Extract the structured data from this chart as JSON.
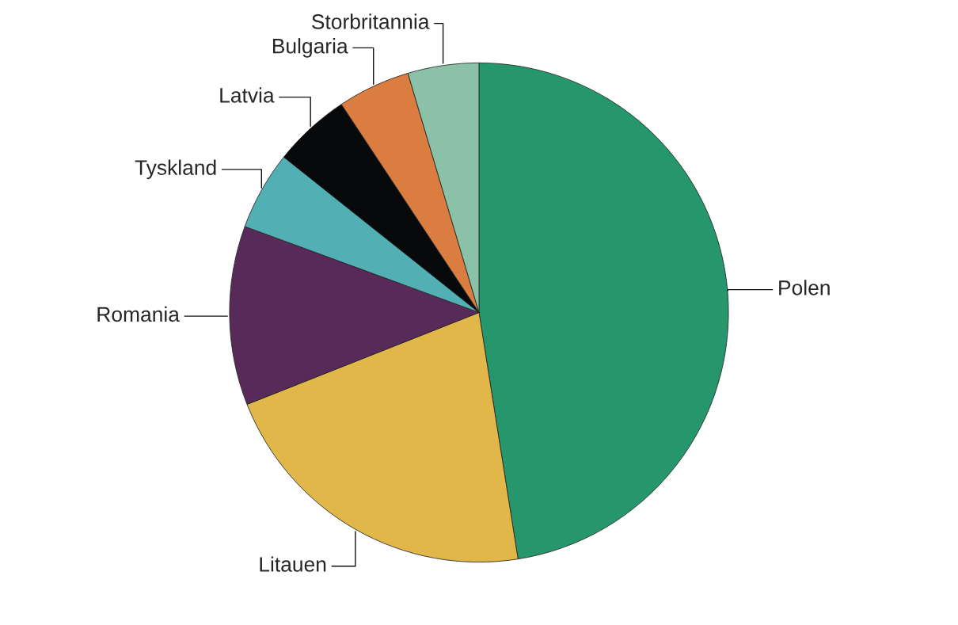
{
  "chart_data": {
    "type": "pie",
    "categories": [
      "Polen",
      "Litauen",
      "Romania",
      "Tyskland",
      "Latvia",
      "Bulgaria",
      "Storbritannia"
    ],
    "values": [
      47.5,
      21.5,
      11.6,
      5.1,
      5.0,
      4.7,
      4.6
    ],
    "colors": [
      "#26976c",
      "#e1b74a",
      "#582a5a",
      "#52afb4",
      "#07090b",
      "#db7d40",
      "#8bc1a6"
    ]
  }
}
